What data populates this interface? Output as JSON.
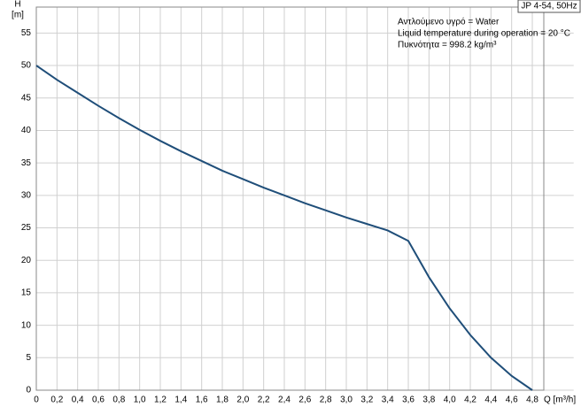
{
  "chart_data": {
    "type": "line",
    "title": "JP 4-54, 50Hz",
    "x_label": "Q [m³/h]",
    "y_label_name": "H",
    "y_label_unit": "[m]",
    "annotations": [
      "Αντλούμενο υγρό = Water",
      "Liquid temperature during operation = 20 °C",
      "Πυκνότητα = 998.2 kg/m³"
    ],
    "x": [
      0,
      0.2,
      0.4,
      0.6,
      0.8,
      1.0,
      1.2,
      1.4,
      1.6,
      1.8,
      2.0,
      2.2,
      2.4,
      2.6,
      2.8,
      3.0,
      3.2,
      3.4,
      3.6,
      3.8,
      4.0,
      4.2,
      4.4,
      4.6,
      4.8
    ],
    "series": [
      {
        "color": "#1f4e79",
        "values": [
          50,
          47.8,
          45.8,
          43.8,
          41.9,
          40.1,
          38.4,
          36.8,
          35.3,
          33.8,
          32.5,
          31.2,
          30.0,
          28.8,
          27.7,
          26.6,
          25.6,
          24.6,
          23.0,
          17.4,
          12.6,
          8.5,
          5.0,
          2.2,
          0
        ]
      }
    ],
    "xlim": [
      0,
      5.2
    ],
    "ylim": [
      0,
      59
    ],
    "xticks": [
      0,
      {
        "value": 0.2,
        "label": "0,2"
      },
      {
        "value": 0.4,
        "label": "0,4"
      },
      {
        "value": 0.6,
        "label": "0,6"
      },
      {
        "value": 0.8,
        "label": "0,8"
      },
      {
        "value": 1.0,
        "label": "1,0"
      },
      {
        "value": 1.2,
        "label": "1,2"
      },
      {
        "value": 1.4,
        "label": "1,4"
      },
      {
        "value": 1.6,
        "label": "1,6"
      },
      {
        "value": 1.8,
        "label": "1,8"
      },
      {
        "value": 2.0,
        "label": "2,0"
      },
      {
        "value": 2.2,
        "label": "2,2"
      },
      {
        "value": 2.4,
        "label": "2,4"
      },
      {
        "value": 2.6,
        "label": "2,6"
      },
      {
        "value": 2.8,
        "label": "2,8"
      },
      {
        "value": 3.0,
        "label": "3,0"
      },
      {
        "value": 3.2,
        "label": "3,2"
      },
      {
        "value": 3.4,
        "label": "3,4"
      },
      {
        "value": 3.6,
        "label": "3,6"
      },
      {
        "value": 3.8,
        "label": "3,8"
      },
      {
        "value": 4.0,
        "label": "4,0"
      },
      {
        "value": 4.2,
        "label": "4,2"
      },
      {
        "value": 4.4,
        "label": "4,4"
      },
      {
        "value": 4.6,
        "label": "4,6"
      },
      {
        "value": 4.8,
        "label": "4,8"
      }
    ],
    "yticks": [
      0,
      5,
      10,
      15,
      20,
      25,
      30,
      35,
      40,
      45,
      50,
      55
    ],
    "grid": true
  }
}
